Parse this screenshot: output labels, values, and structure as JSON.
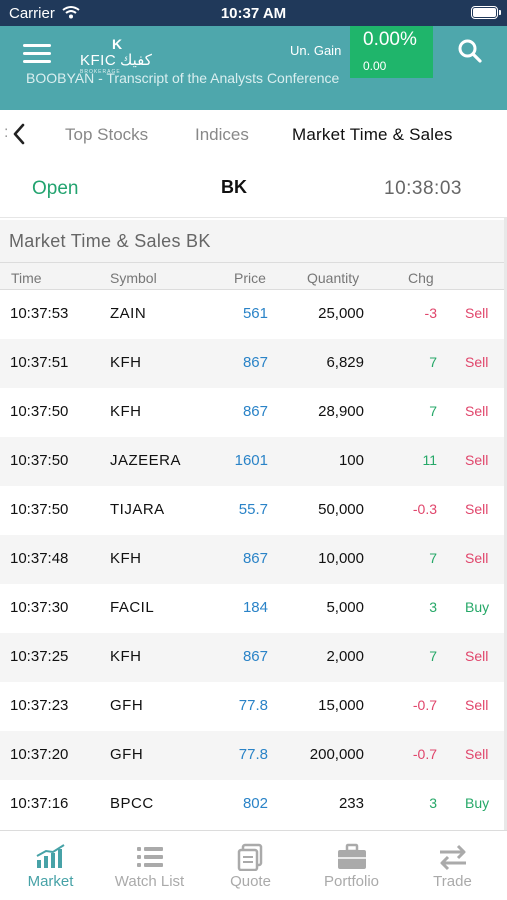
{
  "status_bar": {
    "carrier": "Carrier",
    "time": "10:37 AM"
  },
  "header": {
    "logo_latin": "KFIC",
    "logo_arabic": "كفيك",
    "logo_sub": "BROKERAGE",
    "ticker_text": "BOOBYAN - Transcript of the Analysts Conference",
    "unrealized_gain_label": "Un. Gain",
    "unrealized_gain_pct": "0.00%",
    "unrealized_gain_value": "0.00"
  },
  "tabs": {
    "fragment": ":",
    "items": [
      {
        "label": "Top Stocks"
      },
      {
        "label": "Indices"
      },
      {
        "label": "Market Time & Sales"
      }
    ]
  },
  "market": {
    "status": "Open",
    "name": "BK",
    "clock": "10:38:03"
  },
  "panel": {
    "title": "Market Time & Sales  BK",
    "columns": [
      "Time",
      "Symbol",
      "Price",
      "Quantity",
      "Chg"
    ]
  },
  "trades": [
    {
      "time": "10:37:53",
      "symbol": "ZAIN",
      "price": "561",
      "quantity": "25,000",
      "chg": "-3",
      "side": "Sell"
    },
    {
      "time": "10:37:51",
      "symbol": "KFH",
      "price": "867",
      "quantity": "6,829",
      "chg": "7",
      "side": "Sell"
    },
    {
      "time": "10:37:50",
      "symbol": "KFH",
      "price": "867",
      "quantity": "28,900",
      "chg": "7",
      "side": "Sell"
    },
    {
      "time": "10:37:50",
      "symbol": "JAZEERA",
      "price": "1601",
      "quantity": "100",
      "chg": "11",
      "side": "Sell"
    },
    {
      "time": "10:37:50",
      "symbol": "TIJARA",
      "price": "55.7",
      "quantity": "50,000",
      "chg": "-0.3",
      "side": "Sell"
    },
    {
      "time": "10:37:48",
      "symbol": "KFH",
      "price": "867",
      "quantity": "10,000",
      "chg": "7",
      "side": "Sell"
    },
    {
      "time": "10:37:30",
      "symbol": "FACIL",
      "price": "184",
      "quantity": "5,000",
      "chg": "3",
      "side": "Buy"
    },
    {
      "time": "10:37:25",
      "symbol": "KFH",
      "price": "867",
      "quantity": "2,000",
      "chg": "7",
      "side": "Sell"
    },
    {
      "time": "10:37:23",
      "symbol": "GFH",
      "price": "77.8",
      "quantity": "15,000",
      "chg": "-0.7",
      "side": "Sell"
    },
    {
      "time": "10:37:20",
      "symbol": "GFH",
      "price": "77.8",
      "quantity": "200,000",
      "chg": "-0.7",
      "side": "Sell"
    },
    {
      "time": "10:37:16",
      "symbol": "BPCC",
      "price": "802",
      "quantity": "233",
      "chg": "3",
      "side": "Buy"
    }
  ],
  "bottom_nav": [
    {
      "label": "Market",
      "icon": "market-chart-icon",
      "active": true
    },
    {
      "label": "Watch List",
      "icon": "watch-list-icon",
      "active": false
    },
    {
      "label": "Quote",
      "icon": "quote-icon",
      "active": false
    },
    {
      "label": "Portfolio",
      "icon": "portfolio-briefcase-icon",
      "active": false
    },
    {
      "label": "Trade",
      "icon": "trade-arrows-icon",
      "active": false
    }
  ],
  "colors": {
    "header_bg": "#4ea7ac",
    "status_bar_bg": "#20395a",
    "gain_bg": "#1fb56b",
    "positive": "#26a868",
    "negative": "#e0456b",
    "price": "#2a83c7",
    "active_nav": "#47a2a7"
  }
}
